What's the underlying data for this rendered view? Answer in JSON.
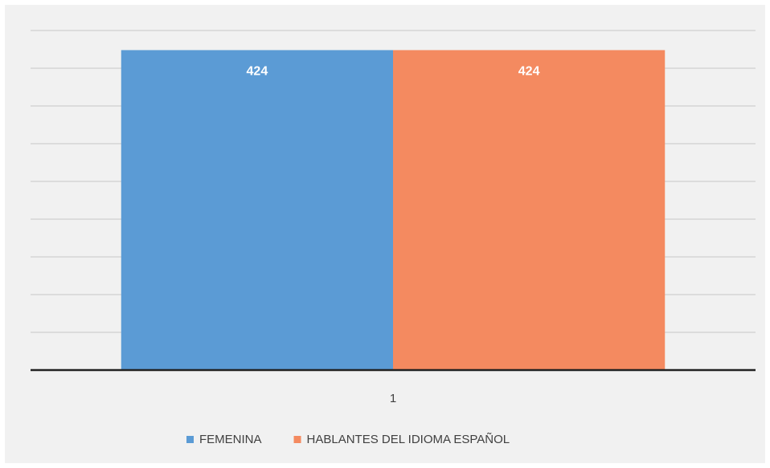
{
  "chart_data": {
    "type": "bar",
    "categories": [
      "1"
    ],
    "series": [
      {
        "name": "FEMENINA",
        "color": "#5b9bd5",
        "values": [
          424
        ]
      },
      {
        "name": "HABLANTES DEL IDIOMA ESPAÑOL",
        "color": "#f48a60",
        "values": [
          424
        ]
      }
    ],
    "ylim": [
      0,
      450
    ],
    "yticks": [
      0,
      50,
      100,
      150,
      200,
      250,
      300,
      350,
      400,
      450
    ],
    "grid": true,
    "legend": "bottom"
  }
}
